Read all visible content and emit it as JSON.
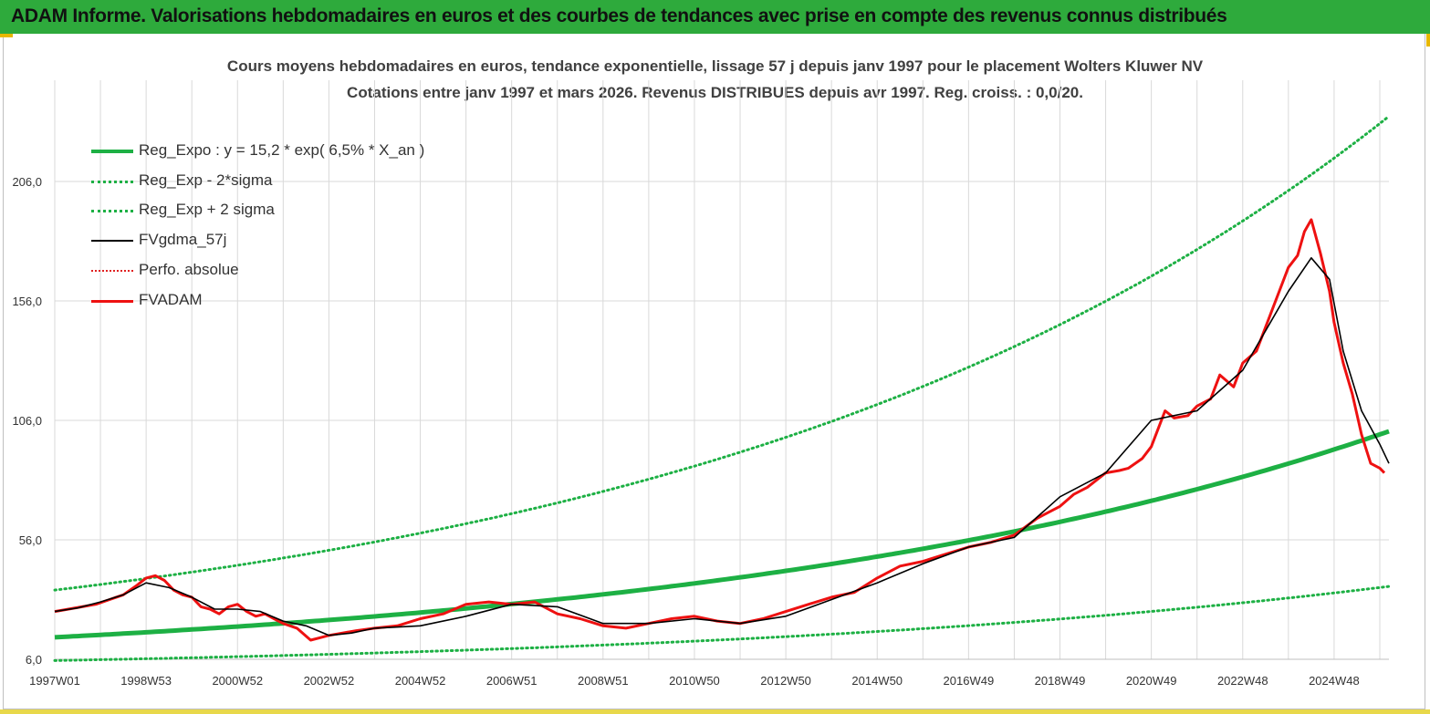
{
  "banner": {
    "title": "ADAM Informe. Valorisations hebdomadaires en euros et des courbes de tendances avec prise en compte des revenus connus distribués"
  },
  "colors": {
    "banner": "#2eaa3c",
    "trend": "#1db044",
    "smoothed": "#000000",
    "price": "#ee1111",
    "perf": "#e02020"
  },
  "chart_data": {
    "type": "line",
    "title": "Cours moyens hebdomadaires en euros, tendance exponentielle, lissage 57 j depuis janv 1997 pour le placement Wolters Kluwer NV",
    "subtitle": "Cotations entre janv 1997 et mars 2026. Revenus DISTRIBUES depuis avr 1997. Reg. croiss. : 0,0/20.",
    "xlabel": "",
    "ylabel": "",
    "xlim": [
      1997.0,
      2026.2
    ],
    "ylim": [
      6,
      234
    ],
    "y_ticks": [
      "6,0",
      "56,0",
      "106,0",
      "156,0",
      "206,0"
    ],
    "y_tick_values": [
      6,
      56,
      106,
      156,
      206
    ],
    "x_ticks": [
      "1997W01",
      "1998W53",
      "2000W52",
      "2002W52",
      "2004W52",
      "2006W51",
      "2008W51",
      "2010W50",
      "2012W50",
      "2014W50",
      "2016W49",
      "2018W49",
      "2020W49",
      "2022W48",
      "2024W48"
    ],
    "x_tick_values": [
      1997.0,
      1999.0,
      2001.0,
      2003.0,
      2005.0,
      2007.0,
      2009.0,
      2011.0,
      2013.0,
      2015.0,
      2017.0,
      2019.0,
      2021.0,
      2023.0,
      2025.0
    ],
    "legend_position": "top-left",
    "legend": [
      {
        "name": "Reg_Expo : y = 15,2 * exp( 6,5% *  X_an )",
        "style": "solid-green"
      },
      {
        "name": "Reg_Exp - 2*sigma",
        "style": "dot-green"
      },
      {
        "name": "Reg_Exp + 2 sigma",
        "style": "dot-green"
      },
      {
        "name": "FVgdma_57j",
        "style": "solid-black"
      },
      {
        "name": "Perfo. absolue",
        "style": "dot-red"
      },
      {
        "name": "FVADAM",
        "style": "solid-red"
      }
    ],
    "regression": {
      "a": 15.2,
      "rate": 0.065,
      "x0": 1997.0,
      "upper_factor": 2.3,
      "lower_factor": 0.36
    },
    "series": [
      {
        "name": "FVADAM",
        "x": [
          1997.0,
          1997.3,
          1997.6,
          1997.9,
          1998.2,
          1998.5,
          1998.8,
          1999.0,
          1999.2,
          1999.4,
          1999.6,
          1999.8,
          2000.0,
          2000.2,
          2000.4,
          2000.6,
          2000.8,
          2001.0,
          2001.2,
          2001.4,
          2001.6,
          2001.8,
          2002.0,
          2002.3,
          2002.6,
          2002.8,
          2003.0,
          2003.3,
          2003.6,
          2004.0,
          2004.5,
          2005.0,
          2005.5,
          2006.0,
          2006.5,
          2007.0,
          2007.5,
          2008.0,
          2008.5,
          2009.0,
          2009.5,
          2010.0,
          2010.5,
          2011.0,
          2011.5,
          2012.0,
          2012.5,
          2013.0,
          2013.5,
          2014.0,
          2014.5,
          2015.0,
          2015.5,
          2016.0,
          2016.5,
          2017.0,
          2017.5,
          2018.0,
          2018.5,
          2019.0,
          2019.3,
          2019.6,
          2020.0,
          2020.3,
          2020.5,
          2020.8,
          2021.0,
          2021.3,
          2021.5,
          2021.8,
          2022.0,
          2022.3,
          2022.5,
          2022.8,
          2023.0,
          2023.3,
          2023.5,
          2023.8,
          2024.0,
          2024.2,
          2024.35,
          2024.5,
          2024.7,
          2024.9,
          2025.0,
          2025.2,
          2025.4,
          2025.6,
          2025.8,
          2026.0,
          2026.1
        ],
        "values": [
          26,
          27,
          28,
          29,
          31,
          33,
          37,
          40,
          41,
          39,
          35,
          33,
          32,
          28,
          27,
          25,
          28,
          29,
          26,
          24,
          25,
          23,
          21,
          19,
          14,
          15,
          16,
          17,
          18,
          19,
          20,
          23,
          25,
          29,
          30,
          29,
          30,
          25,
          23,
          20,
          19,
          21,
          23,
          24,
          22,
          21,
          23,
          26,
          29,
          32,
          34,
          40,
          45,
          47,
          50,
          53,
          55,
          58,
          65,
          70,
          75,
          78,
          84,
          85,
          86,
          90,
          95,
          110,
          107,
          108,
          112,
          115,
          125,
          120,
          130,
          135,
          145,
          160,
          170,
          175,
          185,
          190,
          176,
          160,
          147,
          130,
          117,
          100,
          88,
          86,
          84
        ]
      },
      {
        "name": "FVgdma_57j",
        "x": [
          1997.0,
          1997.5,
          1998.0,
          1998.5,
          1999.0,
          1999.5,
          2000.0,
          2000.5,
          2001.0,
          2001.5,
          2002.0,
          2002.5,
          2003.0,
          2003.5,
          2004.0,
          2005.0,
          2006.0,
          2007.0,
          2008.0,
          2009.0,
          2010.0,
          2011.0,
          2012.0,
          2013.0,
          2014.0,
          2015.0,
          2016.0,
          2017.0,
          2018.0,
          2019.0,
          2020.0,
          2021.0,
          2022.0,
          2023.0,
          2024.0,
          2024.5,
          2024.9,
          2025.2,
          2025.6,
          2026.0,
          2026.2
        ],
        "values": [
          26,
          27.5,
          30,
          33,
          38,
          36,
          32,
          27,
          27,
          26,
          22,
          20,
          16,
          17,
          19,
          20,
          24,
          29,
          28,
          21,
          21,
          23,
          21,
          24,
          31,
          38,
          46,
          53,
          57,
          74,
          84,
          106,
          110,
          127,
          160,
          174,
          165,
          135,
          110,
          96,
          88
        ]
      }
    ]
  }
}
